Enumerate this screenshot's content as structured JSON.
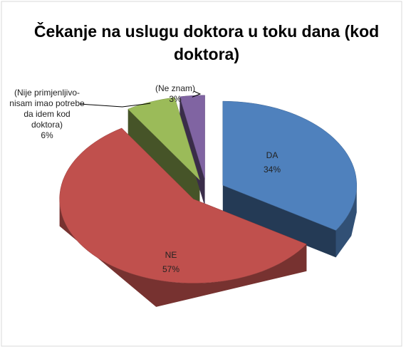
{
  "chart_data": {
    "type": "pie",
    "title": "Čekanje na uslugu doktora u toku dana (kod doktora)",
    "categories": [
      "DA",
      "NE",
      "(Nije primjenljivo-nisam imao potrebe da idem kod doktora)",
      "(Ne znam)"
    ],
    "values": [
      34,
      57,
      6,
      3
    ],
    "value_labels": [
      "34%",
      "57%",
      "6%",
      "3%"
    ],
    "colors": [
      "#4f81bd",
      "#c0504d",
      "#9bbb59",
      "#8064a2"
    ]
  }
}
